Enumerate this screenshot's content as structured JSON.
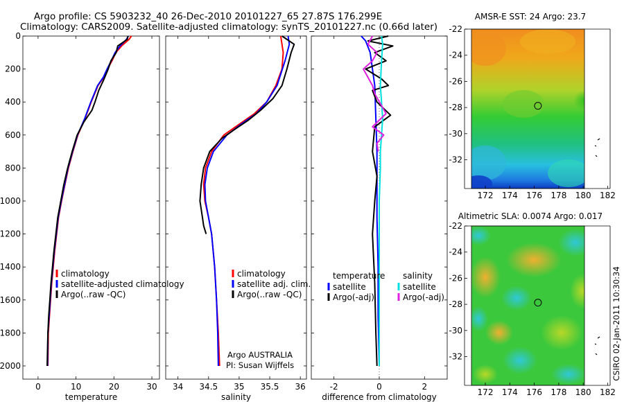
{
  "header": {
    "line1": "Argo profile: CS 5903232_40 26-Dec-2010 20101227_65 27.87S 176.299E",
    "line2": "Climatology: CARS2009. Satellite-adjusted climatology: synTS_20101227.nc (0.66d later)"
  },
  "footer": {
    "stamp": "CSIRO 02-Jan-2011 10:30:34",
    "argo_label": "Argo AUSTRALIA",
    "pi_label": "PI: Susan Wijffels"
  },
  "colors": {
    "climatology": "#ff0000",
    "satellite": "#0000ff",
    "argo": "#000000",
    "sal_satellite": "#00e0e0",
    "sal_argo": "#e020e0"
  },
  "chart_data": [
    {
      "type": "line",
      "xlabel": "temperature",
      "ylabel": "",
      "xlim": [
        -4,
        32
      ],
      "ylim": [
        0,
        2080
      ],
      "y_reversed": true,
      "x_ticks": [
        0,
        10,
        20,
        30
      ],
      "y_ticks": [
        0,
        200,
        400,
        600,
        800,
        1000,
        1200,
        1400,
        1600,
        1800,
        2000
      ],
      "legend": [
        "climatology",
        "satellite-adjusted climatology",
        "Argo(..raw -QC)"
      ],
      "legend_placement": "lower-right",
      "series": [
        {
          "name": "climatology",
          "x": [
            24.6,
            24.0,
            22.0,
            20.5,
            19.5,
            18.3,
            17.3,
            15.8,
            14.0,
            12.4,
            10.5,
            9.2,
            8.0,
            7.1,
            6.2,
            5.4,
            4.9,
            4.4,
            4.0,
            3.6,
            3.3,
            3.0,
            2.7,
            2.6
          ],
          "y": [
            0,
            20,
            60,
            100,
            150,
            200,
            250,
            300,
            400,
            500,
            600,
            700,
            800,
            900,
            1000,
            1100,
            1200,
            1300,
            1400,
            1500,
            1600,
            1700,
            1800,
            2000
          ]
        },
        {
          "name": "satellite-adjusted climatology",
          "x": [
            23.8,
            23.3,
            21.6,
            20.3,
            19.3,
            18.2,
            17.2,
            15.7,
            13.9,
            12.3,
            10.4,
            9.1,
            7.9,
            7.0,
            6.1,
            5.3,
            4.8,
            4.3,
            3.9,
            3.5,
            3.2,
            2.9,
            2.6,
            2.5
          ],
          "y": [
            0,
            20,
            60,
            100,
            150,
            200,
            250,
            300,
            400,
            500,
            600,
            700,
            800,
            900,
            1000,
            1100,
            1200,
            1300,
            1400,
            1500,
            1600,
            1700,
            1800,
            2000
          ]
        },
        {
          "name": "Argo(..raw -QC)",
          "x": [
            23.7,
            23.5,
            21.0,
            20.6,
            19.2,
            18.5,
            17.4,
            16.0,
            15.0,
            14.2,
            12.1,
            10.3,
            9.0,
            7.8,
            6.8,
            6.0,
            5.2,
            4.7,
            4.2,
            3.8,
            3.4,
            3.1,
            2.8,
            2.6,
            2.4
          ],
          "y": [
            0,
            20,
            60,
            100,
            150,
            200,
            260,
            330,
            400,
            450,
            520,
            600,
            700,
            800,
            900,
            1000,
            1100,
            1200,
            1300,
            1400,
            1500,
            1600,
            1700,
            1800,
            2000
          ]
        }
      ]
    },
    {
      "type": "line",
      "xlabel": "salinity",
      "ylabel": "",
      "xlim": [
        33.8,
        36.1
      ],
      "ylim": [
        0,
        2080
      ],
      "y_reversed": true,
      "x_ticks": [
        34,
        34.5,
        35,
        35.5,
        36
      ],
      "legend": [
        "climatology",
        "satellite adj. clim.",
        "Argo(..raw -QC)"
      ],
      "legend_placement": "lower-right",
      "series": [
        {
          "name": "climatology",
          "x": [
            35.68,
            35.7,
            35.72,
            35.7,
            35.6,
            35.45,
            35.25,
            35.02,
            34.75,
            34.55,
            34.45,
            34.42,
            34.44,
            34.5,
            34.55,
            34.6,
            34.63,
            34.66,
            34.68
          ],
          "y": [
            0,
            50,
            100,
            200,
            300,
            400,
            470,
            530,
            600,
            700,
            800,
            900,
            1000,
            1100,
            1200,
            1400,
            1600,
            1800,
            2000
          ]
        },
        {
          "name": "satellite adj. clim.",
          "x": [
            35.8,
            35.82,
            35.75,
            35.62,
            35.45,
            35.28,
            35.05,
            34.8,
            34.58,
            34.48,
            34.44,
            34.45,
            34.5,
            34.55,
            34.6,
            34.63,
            34.65,
            34.66
          ],
          "y": [
            0,
            50,
            150,
            300,
            400,
            470,
            530,
            600,
            700,
            800,
            900,
            1000,
            1100,
            1200,
            1400,
            1600,
            1800,
            2000
          ]
        },
        {
          "name": "Argo(..raw -QC)",
          "x": [
            35.7,
            35.9,
            35.85,
            35.78,
            35.7,
            35.55,
            35.35,
            35.15,
            34.95,
            34.72,
            34.52,
            34.42,
            34.38,
            34.36,
            34.38,
            34.4,
            34.42,
            34.46
          ],
          "y": [
            0,
            50,
            100,
            200,
            300,
            380,
            450,
            510,
            560,
            620,
            700,
            800,
            900,
            1000,
            1050,
            1100,
            1150,
            1200
          ]
        }
      ]
    },
    {
      "type": "line",
      "xlabel": "difference from climatology",
      "ylabel": "",
      "xlim": [
        -3,
        3
      ],
      "ylim": [
        0,
        2080
      ],
      "y_reversed": true,
      "x_ticks": [
        -2,
        0,
        2
      ],
      "legend": [
        "temperature",
        "satellite",
        "Argo(-adj)",
        "salinity",
        "satellite",
        "Argo(-adj)"
      ],
      "legend_placement": "lower-center",
      "series": [
        {
          "name": "satellite",
          "x": [
            -0.8,
            -0.6,
            -0.4,
            -0.3,
            -0.2,
            -0.15,
            -0.1,
            -0.1,
            -0.1,
            -0.05,
            -0.05,
            0.0
          ],
          "y": [
            0,
            30,
            100,
            200,
            300,
            500,
            700,
            900,
            1100,
            1400,
            1700,
            2000
          ]
        },
        {
          "name": "Argo(-adj)",
          "x": [
            0.4,
            -0.5,
            0.6,
            -0.2,
            0.3,
            -0.6,
            0.1,
            0.4,
            -0.3,
            -0.1,
            0.5,
            -0.2,
            -0.3,
            -0.1,
            -0.2,
            -0.3,
            -0.2,
            -0.15,
            -0.1
          ],
          "y": [
            0,
            30,
            60,
            100,
            150,
            200,
            260,
            300,
            330,
            400,
            480,
            550,
            700,
            850,
            1000,
            1200,
            1500,
            1800,
            2000
          ]
        },
        {
          "name": "satellite",
          "x": [
            0.1,
            0.15,
            0.1,
            0.05,
            0.1,
            0.15,
            0.1,
            0.05,
            0.05,
            0.0,
            0.0,
            0.0
          ],
          "y": [
            0,
            50,
            150,
            300,
            400,
            500,
            600,
            700,
            800,
            1000,
            1500,
            2000
          ]
        },
        {
          "name": "Argo(-adj)",
          "x": [
            -0.3,
            -0.5,
            -0.1,
            -0.3,
            -0.7,
            -0.3,
            -0.2,
            0.3,
            -0.3,
            0.2,
            -0.1,
            -0.05
          ],
          "y": [
            0,
            50,
            100,
            150,
            200,
            300,
            350,
            470,
            550,
            600,
            650,
            700
          ]
        }
      ]
    },
    {
      "type": "heatmap",
      "title": "AMSR-E SST: 24 Argo: 23.7",
      "x_ticks": [
        172,
        174,
        176,
        178,
        180,
        182
      ],
      "y_ticks": [
        -22,
        -24,
        -26,
        -28,
        -30,
        -32
      ],
      "xlim": [
        170.3,
        182.2
      ],
      "ylim": [
        -34.2,
        -22
      ],
      "marker": {
        "lon": 176.3,
        "lat": -27.87
      }
    },
    {
      "type": "heatmap",
      "title": "Altimetric SLA: 0.0074 Argo: 0.017",
      "x_ticks": [
        172,
        174,
        176,
        178,
        180,
        182
      ],
      "y_ticks": [
        -22,
        -24,
        -26,
        -28,
        -30,
        -32
      ],
      "xlim": [
        170.3,
        182.2
      ],
      "ylim": [
        -34.2,
        -22
      ],
      "marker": {
        "lon": 176.3,
        "lat": -27.87
      }
    }
  ]
}
